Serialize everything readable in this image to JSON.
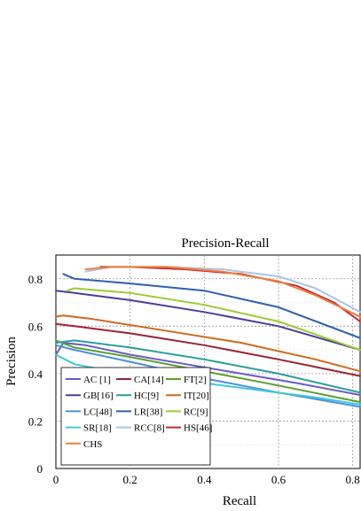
{
  "chart_data": {
    "type": "line",
    "title": "Precision-Recall",
    "xlabel": "Recall",
    "ylabel": "Precision",
    "xlim": [
      0,
      0.82
    ],
    "ylim": [
      0,
      0.9
    ],
    "xticks": [
      0,
      0.2,
      0.4,
      0.6,
      0.8
    ],
    "xtick_labels": [
      "0",
      "0.2",
      "0.4",
      "0.6",
      "0.8"
    ],
    "yticks": [
      0,
      0.2,
      0.4,
      0.6,
      0.8
    ],
    "ytick_labels": [
      "0",
      "0.2",
      "0.4",
      "0.6",
      "0.8"
    ],
    "grid": true,
    "legend_position": "bottom-left",
    "series": [
      {
        "name": "AC [1]",
        "color": "#6a5acd",
        "x": [
          0,
          0.02,
          0.08,
          0.2,
          0.35,
          0.5,
          0.65,
          0.82
        ],
        "y": [
          0.48,
          0.53,
          0.52,
          0.48,
          0.44,
          0.4,
          0.36,
          0.31
        ]
      },
      {
        "name": "CA[14]",
        "color": "#9b2335",
        "x": [
          0,
          0.05,
          0.2,
          0.4,
          0.6,
          0.82
        ],
        "y": [
          0.61,
          0.6,
          0.57,
          0.52,
          0.46,
          0.39
        ]
      },
      {
        "name": "FT[2]",
        "color": "#5aa02c",
        "x": [
          0,
          0.05,
          0.2,
          0.4,
          0.6,
          0.82
        ],
        "y": [
          0.54,
          0.51,
          0.47,
          0.41,
          0.35,
          0.28
        ]
      },
      {
        "name": "GB[16]",
        "color": "#4b3c9e",
        "x": [
          0,
          0.05,
          0.2,
          0.4,
          0.6,
          0.82
        ],
        "y": [
          0.75,
          0.74,
          0.71,
          0.66,
          0.6,
          0.5
        ]
      },
      {
        "name": "HC[9]",
        "color": "#2a9d9d",
        "x": [
          0,
          0.05,
          0.2,
          0.4,
          0.6,
          0.82
        ],
        "y": [
          0.53,
          0.54,
          0.51,
          0.46,
          0.4,
          0.32
        ]
      },
      {
        "name": "IT[20]",
        "color": "#d2691e",
        "x": [
          0,
          0.02,
          0.1,
          0.3,
          0.5,
          0.7,
          0.82
        ],
        "y": [
          0.64,
          0.645,
          0.63,
          0.58,
          0.53,
          0.46,
          0.41
        ]
      },
      {
        "name": "LC[48]",
        "color": "#4a90d9",
        "x": [
          0,
          0.05,
          0.2,
          0.4,
          0.6,
          0.82
        ],
        "y": [
          0.52,
          0.5,
          0.45,
          0.38,
          0.32,
          0.26
        ]
      },
      {
        "name": "LR[38]",
        "color": "#2f5fb3",
        "x": [
          0.02,
          0.05,
          0.2,
          0.4,
          0.6,
          0.82
        ],
        "y": [
          0.82,
          0.8,
          0.78,
          0.75,
          0.68,
          0.55
        ]
      },
      {
        "name": "RC[9]",
        "color": "#9acd32",
        "x": [
          0.03,
          0.05,
          0.2,
          0.4,
          0.6,
          0.82
        ],
        "y": [
          0.75,
          0.76,
          0.74,
          0.69,
          0.62,
          0.5
        ]
      },
      {
        "name": "SR[18]",
        "color": "#40c8d8",
        "x": [
          0,
          0.05,
          0.15,
          0.3,
          0.5,
          0.7,
          0.82
        ],
        "y": [
          0.48,
          0.44,
          0.41,
          0.38,
          0.34,
          0.3,
          0.27
        ]
      },
      {
        "name": "RCC[8]",
        "color": "#a9c4e8",
        "x": [
          0.08,
          0.15,
          0.3,
          0.45,
          0.6,
          0.7,
          0.82
        ],
        "y": [
          0.83,
          0.85,
          0.85,
          0.84,
          0.81,
          0.76,
          0.66
        ]
      },
      {
        "name": "HS[46]",
        "color": "#c8282e",
        "x": [
          0.12,
          0.2,
          0.35,
          0.5,
          0.65,
          0.75,
          0.82
        ],
        "y": [
          0.85,
          0.85,
          0.84,
          0.82,
          0.77,
          0.7,
          0.62
        ]
      },
      {
        "name": "CHS",
        "color": "#f07f3c",
        "x": [
          0.08,
          0.15,
          0.3,
          0.45,
          0.6,
          0.7,
          0.82
        ],
        "y": [
          0.84,
          0.85,
          0.85,
          0.83,
          0.79,
          0.73,
          0.64
        ]
      }
    ]
  }
}
